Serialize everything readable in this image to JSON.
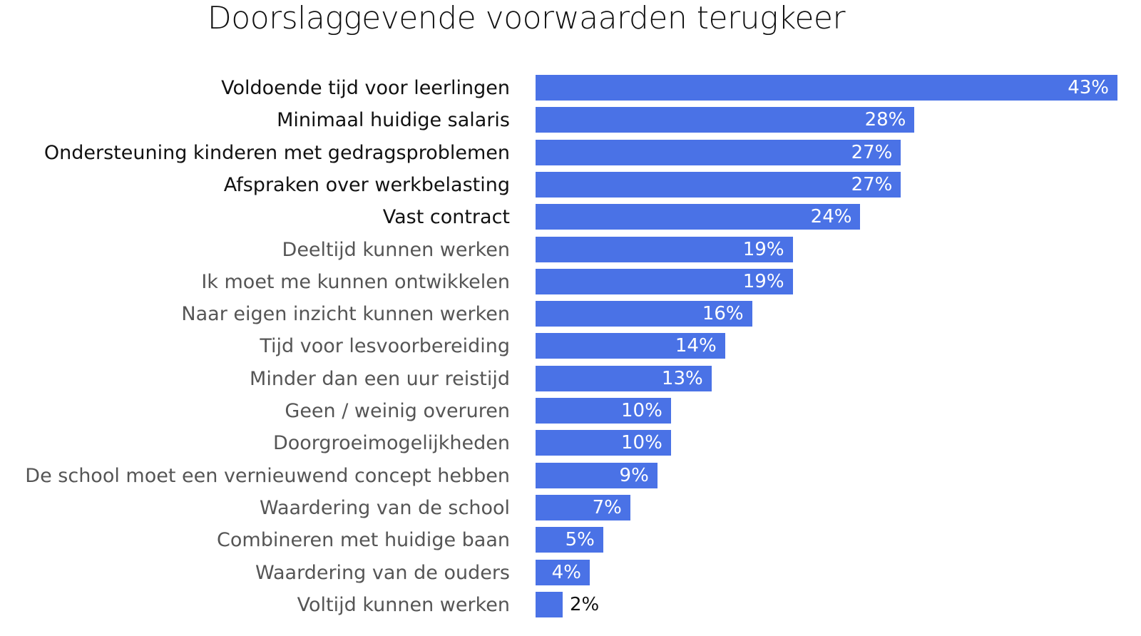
{
  "chart_data": {
    "type": "bar",
    "orientation": "horizontal",
    "title": "Doorslaggevende voorwaarden terugkeer",
    "xlabel": "",
    "ylabel": "",
    "xlim": [
      0,
      43
    ],
    "grid": false,
    "bar_color": "#4a72e6",
    "categories": [
      "Voldoende tijd voor leerlingen",
      "Minimaal huidige salaris",
      "Ondersteuning kinderen met gedragsproblemen",
      "Afspraken over werkbelasting",
      "Vast contract",
      "Deeltijd kunnen werken",
      "Ik moet me kunnen ontwikkelen",
      "Naar eigen inzicht kunnen werken",
      "Tijd voor lesvoorbereiding",
      "Minder dan een uur reistijd",
      "Geen / weinig overuren",
      "Doorgroeimogelijkheden",
      "De school moet een vernieuwend concept hebben",
      "Waardering van de school",
      "Combineren met huidige baan",
      "Waardering van de ouders",
      "Voltijd kunnen werken"
    ],
    "values": [
      43,
      28,
      27,
      27,
      24,
      19,
      19,
      16,
      14,
      13,
      10,
      10,
      9,
      7,
      5,
      4,
      2
    ],
    "value_labels": [
      "43%",
      "28%",
      "27%",
      "27%",
      "24%",
      "19%",
      "19%",
      "16%",
      "14%",
      "13%",
      "10%",
      "10%",
      "9%",
      "7%",
      "5%",
      "4%",
      "2%"
    ],
    "highlighted_count": 5
  }
}
